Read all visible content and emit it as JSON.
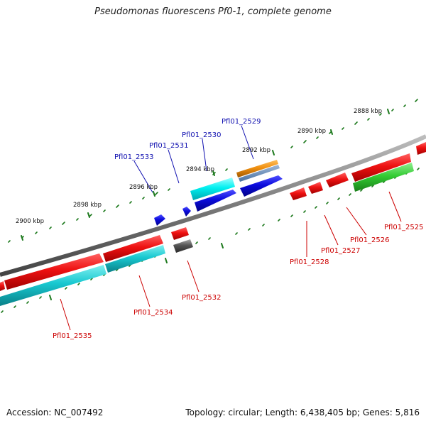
{
  "title": "Pseudomonas fluorescens Pf0-1, complete genome",
  "footer": {
    "accession": "Accession: NC_007492",
    "summary": "Topology: circular; Length: 6,438,405 bp; Genes: 5,816"
  },
  "colors": {
    "backbone": "#7a7a7a",
    "ticks": "#1e7a1e",
    "forward_label": "#1010b0",
    "reverse_label": "#cc0000",
    "red": "#ee1111",
    "cyan": "#18c8d0",
    "cyan_bright": "#00f0f0",
    "blue": "#0b0bdd",
    "green": "#33cc33",
    "orange": "#f09010",
    "gray": "#555555"
  },
  "scale_labels": [
    "2888 kbp",
    "2890 kbp",
    "2892 kbp",
    "2894 kbp",
    "2896 kbp",
    "2898 kbp",
    "2900 kbp"
  ],
  "gene_labels": {
    "forward": [
      "Pfl01_2529",
      "Pfl01_2530",
      "Pfl01_2531",
      "Pfl01_2533"
    ],
    "reverse": [
      "Pfl01_2525",
      "Pfl01_2526",
      "Pfl01_2527",
      "Pfl01_2528",
      "Pfl01_2532",
      "Pfl01_2534",
      "Pfl01_2535"
    ]
  }
}
